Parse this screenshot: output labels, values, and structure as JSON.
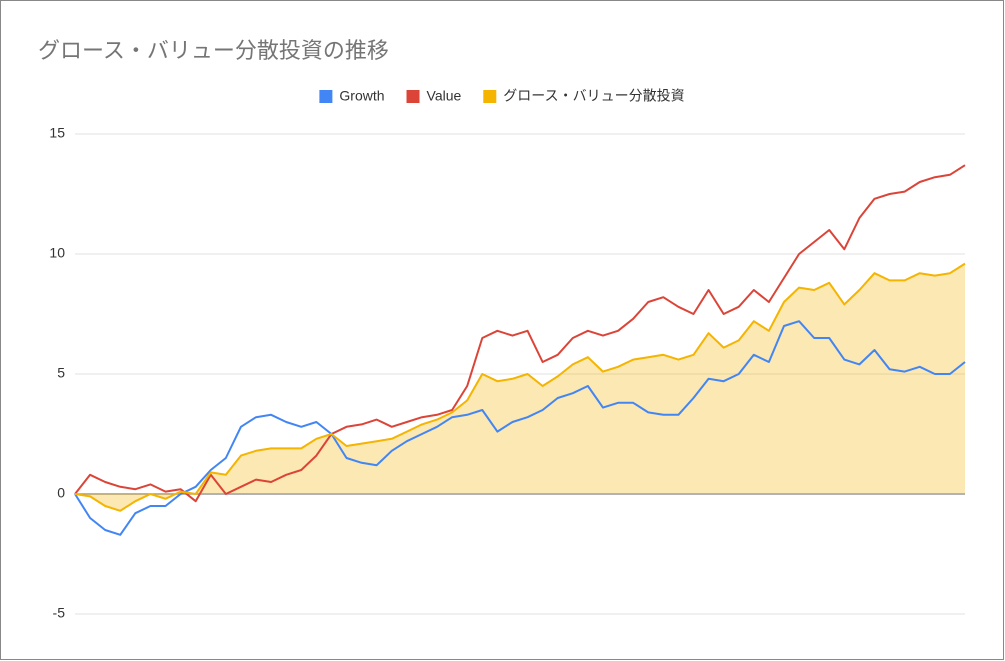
{
  "chart_data": {
    "type": "line",
    "title": "グロース・バリュー分散投資の推移",
    "series": [
      {
        "name": "Growth",
        "color": "#4285f4",
        "values": [
          0,
          -1,
          -1.5,
          -1.7,
          -0.8,
          -0.5,
          -0.5,
          0,
          0.3,
          1,
          1.5,
          2.8,
          3.2,
          3.3,
          3,
          2.8,
          3,
          2.5,
          1.5,
          1.3,
          1.2,
          1.8,
          2.2,
          2.5,
          2.8,
          3.2,
          3.3,
          3.5,
          2.6,
          3,
          3.2,
          3.5,
          4,
          4.2,
          4.5,
          3.6,
          3.8,
          3.8,
          3.4,
          3.3,
          3.3,
          4,
          4.8,
          4.7,
          5,
          5.8,
          5.5,
          7,
          7.2,
          6.5,
          6.5,
          5.6,
          5.4,
          6,
          5.2,
          5.1,
          5.3,
          5,
          5,
          5.5
        ]
      },
      {
        "name": "Value",
        "color": "#db4437",
        "values": [
          0,
          0.8,
          0.5,
          0.3,
          0.2,
          0.4,
          0.1,
          0.2,
          -0.3,
          0.8,
          0,
          0.3,
          0.6,
          0.5,
          0.8,
          1,
          1.6,
          2.5,
          2.8,
          2.9,
          3.1,
          2.8,
          3,
          3.2,
          3.3,
          3.5,
          4.5,
          6.5,
          6.8,
          6.6,
          6.8,
          5.5,
          5.8,
          6.5,
          6.8,
          6.6,
          6.8,
          7.3,
          8,
          8.2,
          7.8,
          7.5,
          8.5,
          7.5,
          7.8,
          8.5,
          8,
          9,
          10,
          10.5,
          11,
          10.2,
          11.5,
          12.3,
          12.5,
          12.6,
          13,
          13.2,
          13.3,
          13.7
        ]
      },
      {
        "name": "グロース・バリュー分散投資",
        "color": "#f4b400",
        "area": true,
        "values": [
          0,
          -0.1,
          -0.5,
          -0.7,
          -0.3,
          0,
          -0.2,
          0.1,
          0,
          0.9,
          0.8,
          1.6,
          1.8,
          1.9,
          1.9,
          1.9,
          2.3,
          2.5,
          2,
          2.1,
          2.2,
          2.3,
          2.6,
          2.9,
          3.1,
          3.4,
          3.9,
          5,
          4.7,
          4.8,
          5,
          4.5,
          4.9,
          5.4,
          5.7,
          5.1,
          5.3,
          5.6,
          5.7,
          5.8,
          5.6,
          5.8,
          6.7,
          6.1,
          6.4,
          7.2,
          6.8,
          8,
          8.6,
          8.5,
          8.8,
          7.9,
          8.5,
          9.2,
          8.9,
          8.9,
          9.2,
          9.1,
          9.2,
          9.6
        ]
      }
    ],
    "ylim": [
      -5,
      15
    ],
    "yticks": [
      -5,
      0,
      5,
      10,
      15
    ],
    "grid": true
  }
}
